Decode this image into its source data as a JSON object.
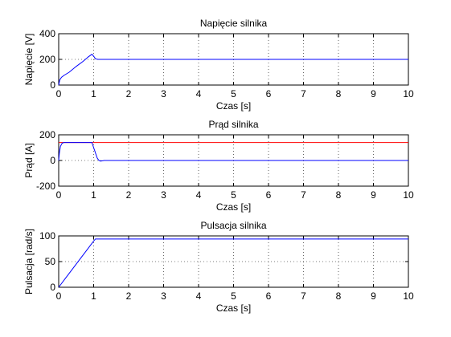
{
  "chart_data": [
    {
      "type": "line",
      "title": "Napięcie silnika",
      "xlabel": "Czas [s]",
      "ylabel": "Napięcie [V]",
      "xlim": [
        0,
        10
      ],
      "ylim": [
        0,
        400
      ],
      "xticks": [
        "0",
        "1",
        "2",
        "3",
        "4",
        "5",
        "6",
        "7",
        "8",
        "9",
        "10"
      ],
      "yticks": [
        "0",
        "200",
        "400"
      ],
      "grid": true,
      "series": [
        {
          "color": "#0000ff",
          "x": [
            0,
            0.03,
            0.08,
            0.15,
            0.3,
            0.5,
            0.7,
            0.85,
            0.95,
            1.0,
            1.05,
            1.12,
            1.2,
            1.5,
            10
          ],
          "y": [
            0,
            40,
            60,
            75,
            100,
            145,
            185,
            220,
            240,
            225,
            205,
            200,
            200,
            200,
            200
          ]
        }
      ]
    },
    {
      "type": "line",
      "title": "Prąd silnika",
      "xlabel": "Czas [s]",
      "ylabel": "Prąd [A]",
      "xlim": [
        0,
        10
      ],
      "ylim": [
        -200,
        200
      ],
      "xticks": [
        "0",
        "1",
        "2",
        "3",
        "4",
        "5",
        "6",
        "7",
        "8",
        "9",
        "10"
      ],
      "yticks": [
        "-200",
        "0",
        "200"
      ],
      "grid": true,
      "series": [
        {
          "color": "#ff0000",
          "x": [
            0,
            10
          ],
          "y": [
            140,
            140
          ]
        },
        {
          "color": "#0000ff",
          "x": [
            0,
            0.02,
            0.05,
            0.1,
            0.15,
            0.9,
            0.95,
            1.0,
            1.05,
            1.1,
            1.15,
            1.2,
            1.3,
            10
          ],
          "y": [
            0,
            60,
            110,
            135,
            140,
            140,
            140,
            100,
            60,
            20,
            0,
            -5,
            0,
            0
          ]
        }
      ]
    },
    {
      "type": "line",
      "title": "Pulsacja silnika",
      "xlabel": "Czas [s]",
      "ylabel": "Pulsacja [rad/s]",
      "xlim": [
        0,
        10
      ],
      "ylim": [
        0,
        100
      ],
      "xticks": [
        "0",
        "1",
        "2",
        "3",
        "4",
        "5",
        "6",
        "7",
        "8",
        "9",
        "10"
      ],
      "yticks": [
        "0",
        "50",
        "100"
      ],
      "grid": true,
      "series": [
        {
          "color": "#0000ff",
          "x": [
            0,
            0.2,
            0.5,
            0.8,
            1.0,
            1.05,
            10
          ],
          "y": [
            0,
            18,
            45,
            72,
            90,
            94,
            94
          ]
        }
      ]
    }
  ]
}
